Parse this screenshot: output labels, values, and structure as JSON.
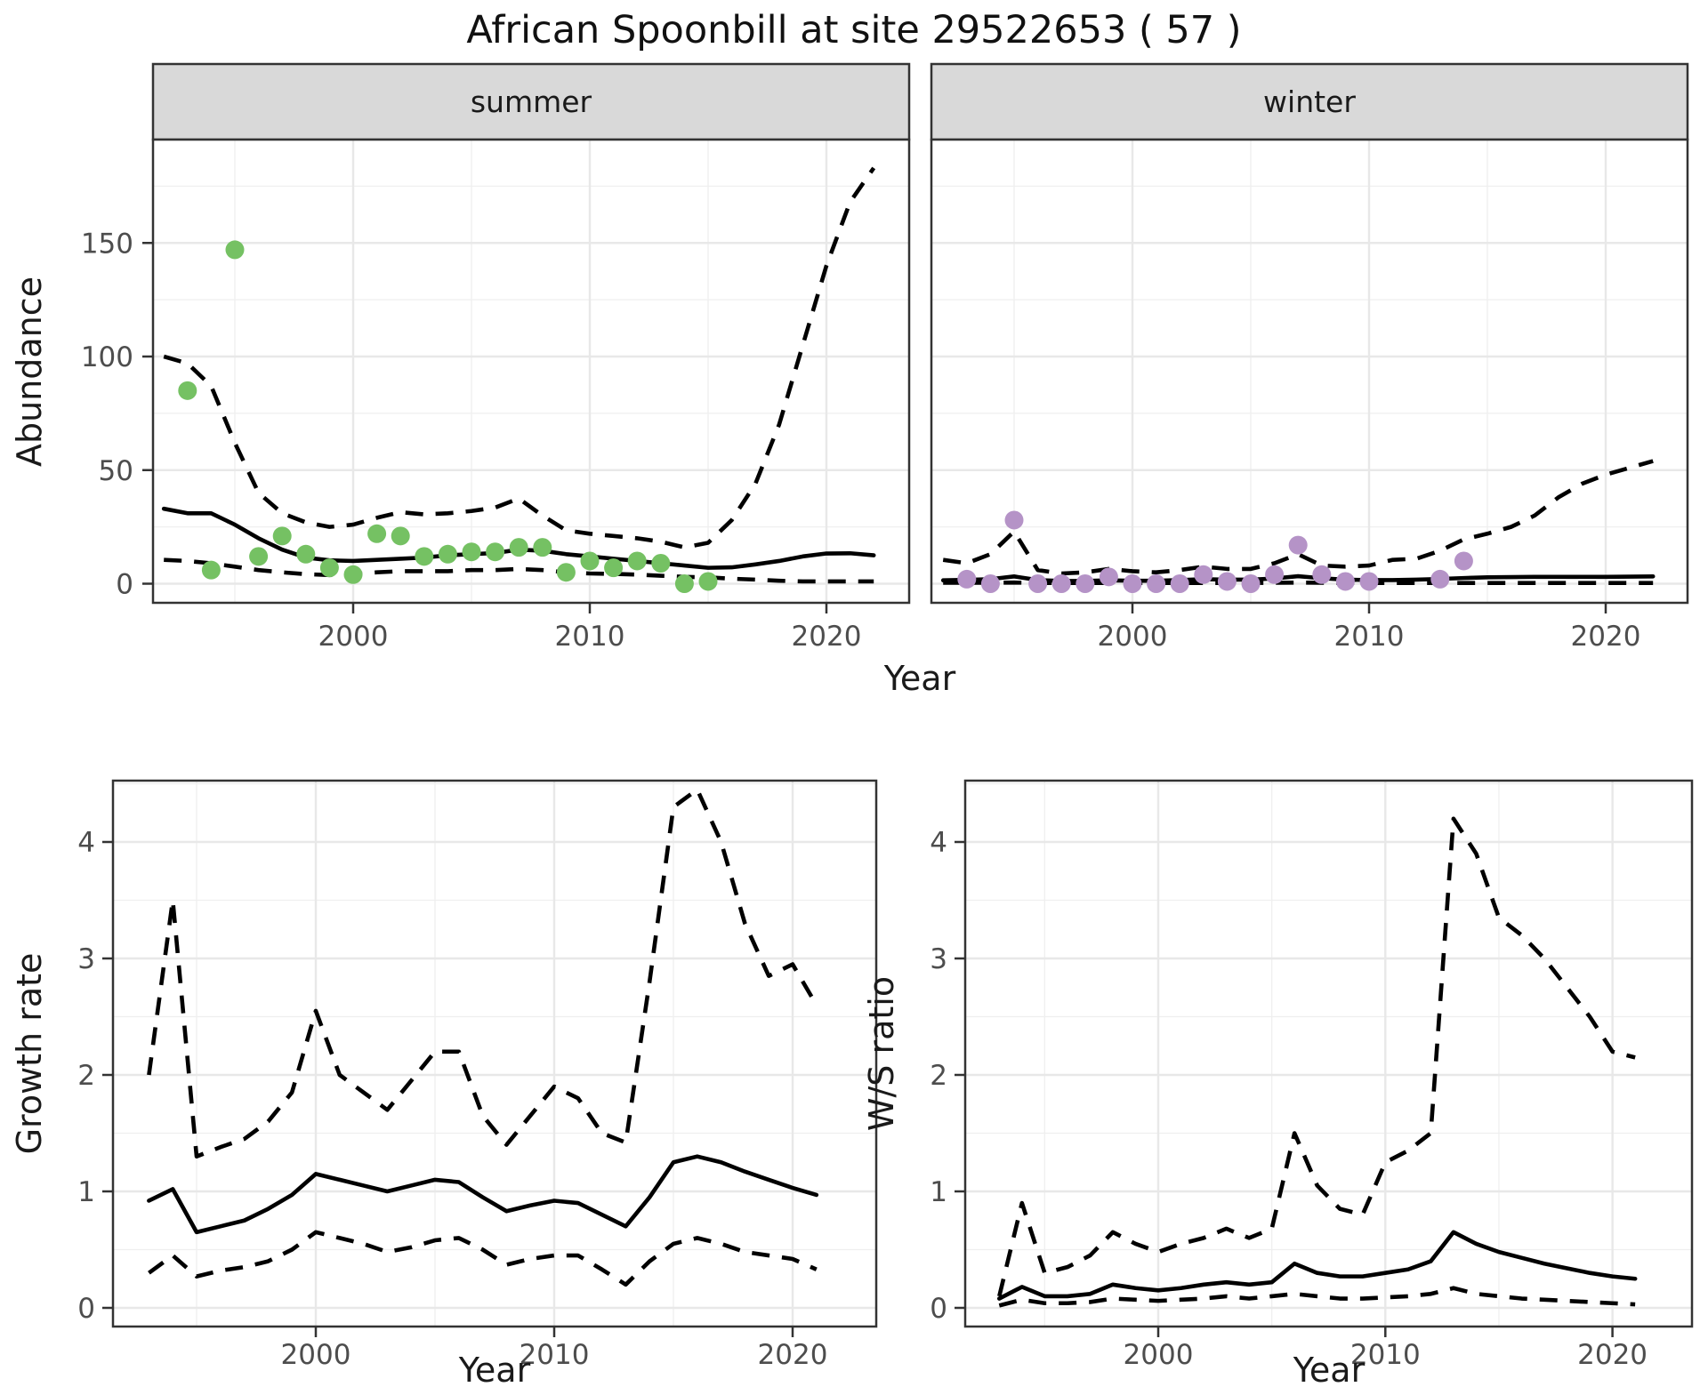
{
  "title": "African Spoonbill at site 29522653 ( 57 )",
  "labels": {
    "year": "Year",
    "abundance": "Abundance",
    "growth_rate": "Growth rate",
    "ws_ratio": "W/S ratio"
  },
  "facets": [
    {
      "label": "summer"
    },
    {
      "label": "winter"
    }
  ],
  "colors": {
    "summer_point": "#75c163",
    "winter_point": "#b593c7",
    "line": "#000000",
    "grid": "#e8e8e8",
    "strip_bg": "#d9d9d9",
    "panel_border": "#333333",
    "tick_text": "#4d4d4d"
  },
  "chart_data": [
    {
      "id": "summer_abundance",
      "type": "scatter",
      "facet": "summer",
      "title": "",
      "xlabel": "Year",
      "ylabel": "Abundance",
      "xlim": [
        1991.5,
        2023.5
      ],
      "ylim": [
        0,
        196
      ],
      "x_ticks": [
        2000,
        2010,
        2020
      ],
      "x_minor": [
        1995,
        2005,
        2015
      ],
      "y_ticks": [
        0,
        50,
        100,
        150
      ],
      "y_minor": [
        25,
        75,
        125,
        175
      ],
      "grid": "on",
      "legend": "none",
      "points": {
        "x": [
          1993,
          1994,
          1995,
          1996,
          1997,
          1998,
          1999,
          2000,
          2001,
          2002,
          2003,
          2004,
          2005,
          2006,
          2007,
          2008,
          2009,
          2010,
          2011,
          2012,
          2013,
          2014,
          2015
        ],
        "y": [
          85,
          6,
          147,
          12,
          21,
          13,
          7,
          4,
          22,
          21,
          12,
          13,
          14,
          14,
          16,
          16,
          5,
          10,
          7,
          10,
          9,
          0,
          1
        ]
      },
      "series": [
        {
          "name": "fit",
          "style": "solid",
          "x": [
            1992,
            1993,
            1994,
            1995,
            1996,
            1997,
            1998,
            1999,
            2000,
            2001,
            2002,
            2003,
            2004,
            2005,
            2006,
            2007,
            2008,
            2009,
            2010,
            2011,
            2012,
            2013,
            2014,
            2015,
            2016,
            2017,
            2018,
            2019,
            2020,
            2021,
            2022
          ],
          "y": [
            33,
            31,
            31,
            26,
            20,
            15,
            11.5,
            10.3,
            10,
            10.5,
            11,
            11.5,
            12.5,
            13,
            13.5,
            15,
            14.5,
            13,
            12,
            11,
            10,
            9,
            8,
            7,
            7.2,
            8.5,
            10,
            12,
            13.3,
            13.4,
            12.5
          ]
        },
        {
          "name": "ci_upper",
          "style": "dashed",
          "x": [
            1992,
            1993,
            1994,
            1995,
            1996,
            1997,
            1998,
            1999,
            2000,
            2001,
            2002,
            2003,
            2004,
            2005,
            2006,
            2007,
            2008,
            2009,
            2010,
            2011,
            2012,
            2013,
            2014,
            2015,
            2016,
            2017,
            2018,
            2019,
            2020,
            2021,
            2022
          ],
          "y": [
            100,
            97,
            87,
            62,
            40,
            31,
            27,
            25,
            26,
            29,
            31.5,
            30.5,
            31,
            32,
            33.5,
            37.5,
            30,
            23.5,
            22,
            21,
            20,
            18.5,
            16,
            18,
            28,
            44,
            70,
            105,
            140,
            168,
            183
          ]
        },
        {
          "name": "ci_lower",
          "style": "dashed",
          "x": [
            1992,
            1993,
            1994,
            1995,
            1996,
            1997,
            1998,
            1999,
            2000,
            2001,
            2002,
            2003,
            2004,
            2005,
            2006,
            2007,
            2008,
            2009,
            2010,
            2011,
            2012,
            2013,
            2014,
            2015,
            2016,
            2017,
            2018,
            2019,
            2020,
            2021,
            2022
          ],
          "y": [
            10.5,
            10,
            9,
            7.5,
            6,
            5,
            4.2,
            3.8,
            4.2,
            5,
            5.5,
            5.5,
            5.5,
            6,
            6,
            6.5,
            6,
            5,
            4.5,
            4.3,
            4,
            3.5,
            3,
            2.8,
            2.2,
            1.8,
            1.3,
            1,
            1,
            1,
            1
          ]
        }
      ]
    },
    {
      "id": "winter_abundance",
      "type": "scatter",
      "facet": "winter",
      "title": "",
      "xlabel": "Year",
      "ylabel": "Abundance",
      "xlim": [
        1991.5,
        2023.5
      ],
      "ylim": [
        0,
        196
      ],
      "x_ticks": [
        2000,
        2010,
        2020
      ],
      "x_minor": [
        1995,
        2005,
        2015
      ],
      "y_ticks": [
        0,
        50,
        100,
        150
      ],
      "y_minor": [
        25,
        75,
        125,
        175
      ],
      "grid": "on",
      "legend": "none",
      "points": {
        "x": [
          1993,
          1994,
          1995,
          1996,
          1997,
          1998,
          1999,
          2000,
          2001,
          2002,
          2003,
          2004,
          2005,
          2006,
          2007,
          2008,
          2009,
          2010,
          2013,
          2014
        ],
        "y": [
          2,
          0,
          28,
          0,
          0,
          0,
          3,
          0,
          0,
          0,
          4,
          1,
          0,
          4,
          17,
          4,
          1,
          1,
          2,
          10
        ]
      },
      "series": [
        {
          "name": "fit",
          "style": "solid",
          "x": [
            1992,
            1993,
            1994,
            1995,
            1996,
            1997,
            1998,
            1999,
            2000,
            2001,
            2002,
            2003,
            2004,
            2005,
            2006,
            2007,
            2008,
            2009,
            2010,
            2011,
            2012,
            2013,
            2014,
            2015,
            2016,
            2017,
            2018,
            2019,
            2020,
            2021,
            2022
          ],
          "y": [
            1.5,
            1.7,
            2,
            3.2,
            1.6,
            1.2,
            1.2,
            1.5,
            1.3,
            1.3,
            1.6,
            2,
            1.8,
            1.8,
            2.3,
            3.3,
            2.4,
            1.8,
            1.6,
            1.6,
            1.8,
            2.1,
            2.5,
            2.8,
            2.9,
            3,
            3,
            3,
            3,
            3.1,
            3.2
          ]
        },
        {
          "name": "ci_upper",
          "style": "dashed",
          "x": [
            1992,
            1993,
            1994,
            1995,
            1996,
            1997,
            1998,
            1999,
            2000,
            2001,
            2002,
            2003,
            2004,
            2005,
            2006,
            2007,
            2008,
            2009,
            2010,
            2011,
            2012,
            2013,
            2014,
            2015,
            2016,
            2017,
            2018,
            2019,
            2020,
            2021,
            2022
          ],
          "y": [
            10.5,
            9,
            13,
            23,
            6,
            4.5,
            5,
            6.5,
            5.5,
            5,
            6,
            7.5,
            6.5,
            6.5,
            9,
            13,
            8,
            7.5,
            8,
            10.5,
            11,
            14.5,
            19.5,
            22,
            25,
            30,
            38,
            44,
            48,
            51,
            54
          ]
        },
        {
          "name": "ci_lower",
          "style": "dashed",
          "x": [
            1992,
            1993,
            1994,
            1995,
            1996,
            1997,
            1998,
            1999,
            2000,
            2001,
            2002,
            2003,
            2004,
            2005,
            2006,
            2007,
            2008,
            2009,
            2010,
            2011,
            2012,
            2013,
            2014,
            2015,
            2016,
            2017,
            2018,
            2019,
            2020,
            2021,
            2022
          ],
          "y": [
            0.4,
            0.4,
            0.4,
            0.5,
            0.3,
            0.3,
            0.3,
            0.3,
            0.3,
            0.3,
            0.3,
            0.3,
            0.3,
            0.3,
            0.4,
            0.5,
            0.4,
            0.3,
            0.3,
            0.3,
            0.3,
            0.3,
            0.3,
            0.3,
            0.3,
            0.3,
            0.3,
            0.3,
            0.3,
            0.3,
            0.3
          ]
        }
      ]
    },
    {
      "id": "growth_rate",
      "type": "line",
      "facet": "",
      "title": "",
      "xlabel": "Year",
      "ylabel": "Growth rate",
      "xlim": [
        1991.5,
        2023.5
      ],
      "ylim": [
        0,
        4.55
      ],
      "x_ticks": [
        2000,
        2010,
        2020
      ],
      "x_minor": [
        1995,
        2005,
        2015
      ],
      "y_ticks": [
        0,
        1,
        2,
        3,
        4
      ],
      "y_minor": [
        0.5,
        1.5,
        2.5,
        3.5,
        4.5
      ],
      "grid": "on",
      "legend": "none",
      "series": [
        {
          "name": "fit",
          "style": "solid",
          "x": [
            1993,
            1994,
            1995,
            1996,
            1997,
            1998,
            1999,
            2000,
            2001,
            2002,
            2003,
            2004,
            2005,
            2006,
            2007,
            2008,
            2009,
            2010,
            2011,
            2012,
            2013,
            2014,
            2015,
            2016,
            2017,
            2018,
            2019,
            2020,
            2021
          ],
          "y": [
            0.92,
            1.02,
            0.65,
            0.7,
            0.75,
            0.85,
            0.97,
            1.15,
            1.1,
            1.05,
            1,
            1.05,
            1.1,
            1.08,
            0.95,
            0.83,
            0.88,
            0.92,
            0.9,
            0.8,
            0.7,
            0.95,
            1.25,
            1.3,
            1.25,
            1.17,
            1.1,
            1.03,
            0.97
          ]
        },
        {
          "name": "ci_upper",
          "style": "dashed",
          "x": [
            1993,
            1994,
            1995,
            1996,
            1997,
            1998,
            1999,
            2000,
            2001,
            2002,
            2003,
            2004,
            2005,
            2006,
            2007,
            2008,
            2009,
            2010,
            2011,
            2012,
            2013,
            2014,
            2015,
            2016,
            2017,
            2018,
            2019,
            2020,
            2021
          ],
          "y": [
            2,
            3.5,
            1.3,
            1.38,
            1.45,
            1.6,
            1.85,
            2.55,
            2,
            1.85,
            1.7,
            1.95,
            2.2,
            2.2,
            1.65,
            1.4,
            1.65,
            1.9,
            1.8,
            1.5,
            1.42,
            2.8,
            4.3,
            4.45,
            4,
            3.3,
            2.85,
            2.95,
            2.6
          ]
        },
        {
          "name": "ci_lower",
          "style": "dashed",
          "x": [
            1993,
            1994,
            1995,
            1996,
            1997,
            1998,
            1999,
            2000,
            2001,
            2002,
            2003,
            2004,
            2005,
            2006,
            2007,
            2008,
            2009,
            2010,
            2011,
            2012,
            2013,
            2014,
            2015,
            2016,
            2017,
            2018,
            2019,
            2020,
            2021
          ],
          "y": [
            0.3,
            0.45,
            0.27,
            0.32,
            0.35,
            0.4,
            0.5,
            0.65,
            0.6,
            0.55,
            0.48,
            0.52,
            0.58,
            0.6,
            0.5,
            0.37,
            0.42,
            0.45,
            0.45,
            0.33,
            0.2,
            0.4,
            0.55,
            0.6,
            0.55,
            0.48,
            0.45,
            0.42,
            0.33
          ]
        }
      ]
    },
    {
      "id": "ws_ratio",
      "type": "line",
      "facet": "",
      "title": "",
      "xlabel": "Year",
      "ylabel": "W/S ratio",
      "xlim": [
        1991.5,
        2023.5
      ],
      "ylim": [
        0,
        4.55
      ],
      "x_ticks": [
        2000,
        2010,
        2020
      ],
      "x_minor": [
        1995,
        2005,
        2015
      ],
      "y_ticks": [
        0,
        1,
        2,
        3,
        4
      ],
      "y_minor": [
        0.5,
        1.5,
        2.5,
        3.5,
        4.5
      ],
      "grid": "on",
      "legend": "none",
      "series": [
        {
          "name": "fit",
          "style": "solid",
          "x": [
            1993,
            1994,
            1995,
            1996,
            1997,
            1998,
            1999,
            2000,
            2001,
            2002,
            2003,
            2004,
            2005,
            2006,
            2007,
            2008,
            2009,
            2010,
            2011,
            2012,
            2013,
            2014,
            2015,
            2016,
            2017,
            2018,
            2019,
            2020,
            2021
          ],
          "y": [
            0.08,
            0.18,
            0.1,
            0.1,
            0.12,
            0.2,
            0.17,
            0.15,
            0.17,
            0.2,
            0.22,
            0.2,
            0.22,
            0.38,
            0.3,
            0.27,
            0.27,
            0.3,
            0.33,
            0.4,
            0.65,
            0.55,
            0.48,
            0.43,
            0.38,
            0.34,
            0.3,
            0.27,
            0.25
          ]
        },
        {
          "name": "ci_upper",
          "style": "dashed",
          "x": [
            1993,
            1994,
            1995,
            1996,
            1997,
            1998,
            1999,
            2000,
            2001,
            2002,
            2003,
            2004,
            2005,
            2006,
            2007,
            2008,
            2009,
            2010,
            2011,
            2012,
            2013,
            2014,
            2015,
            2016,
            2017,
            2018,
            2019,
            2020,
            2021
          ],
          "y": [
            0.1,
            0.9,
            0.3,
            0.35,
            0.45,
            0.65,
            0.55,
            0.48,
            0.55,
            0.6,
            0.68,
            0.6,
            0.68,
            1.5,
            1.05,
            0.85,
            0.8,
            1.25,
            1.35,
            1.5,
            4.2,
            3.9,
            3.35,
            3.2,
            3,
            2.75,
            2.5,
            2.2,
            2.15
          ]
        },
        {
          "name": "ci_lower",
          "style": "dashed",
          "x": [
            1993,
            1994,
            1995,
            1996,
            1997,
            1998,
            1999,
            2000,
            2001,
            2002,
            2003,
            2004,
            2005,
            2006,
            2007,
            2008,
            2009,
            2010,
            2011,
            2012,
            2013,
            2014,
            2015,
            2016,
            2017,
            2018,
            2019,
            2020,
            2021
          ],
          "y": [
            0.02,
            0.07,
            0.04,
            0.04,
            0.05,
            0.08,
            0.07,
            0.06,
            0.07,
            0.08,
            0.1,
            0.08,
            0.1,
            0.12,
            0.1,
            0.08,
            0.08,
            0.09,
            0.1,
            0.12,
            0.17,
            0.12,
            0.1,
            0.08,
            0.07,
            0.06,
            0.05,
            0.04,
            0.03
          ]
        }
      ]
    }
  ]
}
